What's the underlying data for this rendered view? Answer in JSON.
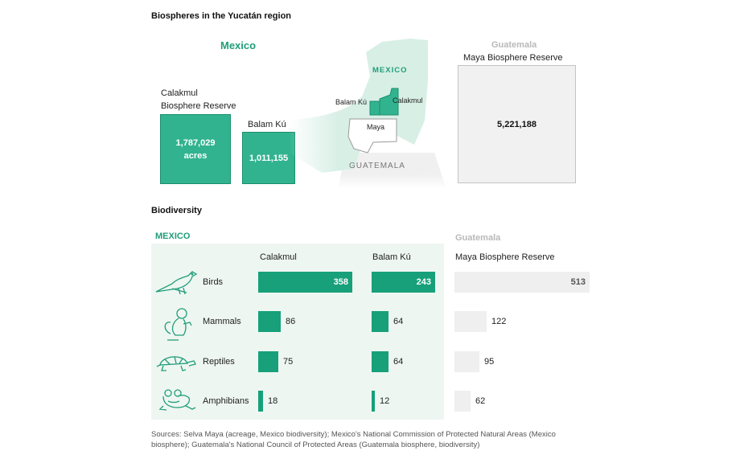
{
  "title": "Biospheres in the Yucatán region",
  "colors": {
    "mexico": "#1f9e78",
    "mexico_fill": "#32b390",
    "guatemala": "#b9b9b9",
    "panel": "#eef6f2"
  },
  "acreage": {
    "mexico_label": "Mexico",
    "guatemala_label": "Guatemala",
    "calakmul": {
      "name_line1": "Calakmul",
      "name_line2": "Biosphere Reserve",
      "value_line1": "1,787,029",
      "value_line2": "acres",
      "acres": 1787029
    },
    "balam_ku": {
      "name": "Balam Kú",
      "value": "1,011,155",
      "acres": 1011155
    },
    "maya": {
      "name": "Maya Biosphere Reserve",
      "value": "5,221,188",
      "acres": 5221188
    }
  },
  "map": {
    "mexico": "MEXICO",
    "guatemala": "GUATEMALA",
    "balam_ku": "Balam Kú",
    "calakmul": "Calakmul",
    "maya": "Maya"
  },
  "biodiversity": {
    "title": "Biodiversity",
    "mexico_label": "MEXICO",
    "guatemala_label": "Guatemala",
    "col_calakmul": "Calakmul",
    "col_balam": "Balam Kú",
    "col_maya": "Maya Biosphere Reserve",
    "rows": [
      {
        "label": "Birds",
        "icon": "bird-icon"
      },
      {
        "label": "Mammals",
        "icon": "monkey-icon"
      },
      {
        "label": "Reptiles",
        "icon": "turtle-icon"
      },
      {
        "label": "Amphibians",
        "icon": "frog-icon"
      }
    ]
  },
  "chart_data": {
    "type": "bar",
    "categories": [
      "Birds",
      "Mammals",
      "Reptiles",
      "Amphibians"
    ],
    "series": [
      {
        "name": "Calakmul",
        "values": [
          358,
          86,
          75,
          18
        ]
      },
      {
        "name": "Balam Kú",
        "values": [
          243,
          64,
          64,
          12
        ]
      },
      {
        "name": "Maya Biosphere Reserve",
        "values": [
          513,
          122,
          95,
          62
        ]
      }
    ]
  },
  "source": {
    "line1": "Sources: Selva Maya (acreage, Mexico biodiversity); Mexico's National Commission of Protected Natural Areas (Mexico",
    "line2": "biosphere); Guatemala's National Council of Protected Areas (Guatemala biosphere, biodiversity)"
  }
}
